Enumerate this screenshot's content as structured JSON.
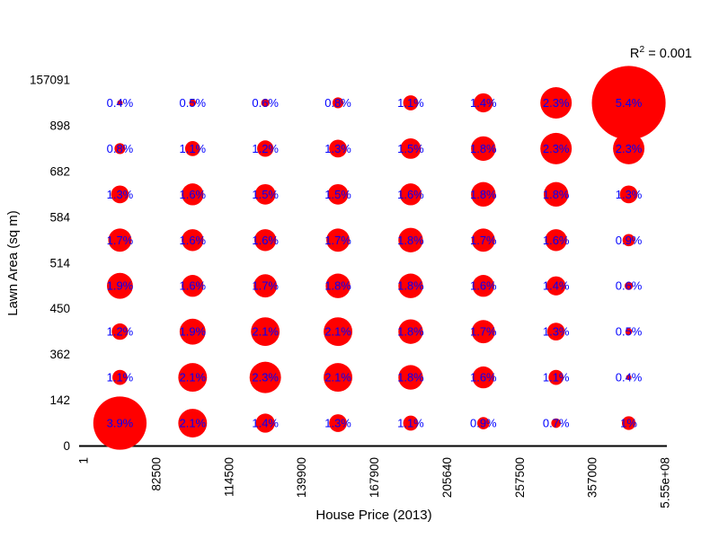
{
  "figure": {
    "background": "#ffffff"
  },
  "chart_data": {
    "type": "bubble",
    "title": "",
    "xlabel": "House Price (2013)",
    "ylabel": "Lawn Area (sq m)",
    "x_tick_labels": [
      "1",
      "82500",
      "114500",
      "139900",
      "167900",
      "205640",
      "257500",
      "357000",
      "5.55e+08"
    ],
    "y_tick_labels_bottom_to_top": [
      "0",
      "142",
      "362",
      "450",
      "514",
      "584",
      "682",
      "898",
      "157091"
    ],
    "annotation": {
      "text_plain": "R^2 = 0.001",
      "base": "R",
      "exponent": "2",
      "rest": "= 0.001"
    },
    "grid": false,
    "legend": "none",
    "bubble_color": "#ff0000",
    "label_color": "#0000ff",
    "axis_color": "#000000",
    "cells": {
      "order": "rows_top_to_bottom",
      "labels": [
        [
          "0.4%",
          "0.5%",
          "0.6%",
          "0.8%",
          "1.1%",
          "1.4%",
          "2.3%",
          "5.4%"
        ],
        [
          "0.8%",
          "1.1%",
          "1.2%",
          "1.3%",
          "1.5%",
          "1.8%",
          "2.3%",
          "2.3%"
        ],
        [
          "1.3%",
          "1.6%",
          "1.5%",
          "1.5%",
          "1.6%",
          "1.8%",
          "1.8%",
          "1.3%"
        ],
        [
          "1.7%",
          "1.6%",
          "1.6%",
          "1.7%",
          "1.8%",
          "1.7%",
          "1.6%",
          "0.9%"
        ],
        [
          "1.9%",
          "1.6%",
          "1.7%",
          "1.8%",
          "1.8%",
          "1.6%",
          "1.4%",
          "0.6%"
        ],
        [
          "1.2%",
          "1.9%",
          "2.1%",
          "2.1%",
          "1.8%",
          "1.7%",
          "1.3%",
          "0.5%"
        ],
        [
          "1.1%",
          "2.1%",
          "2.3%",
          "2.1%",
          "1.8%",
          "1.6%",
          "1.1%",
          "0.4%"
        ],
        [
          "3.9%",
          "2.1%",
          "1.4%",
          "1.3%",
          "1.1%",
          "0.9%",
          "0.7%",
          "1%"
        ]
      ],
      "values_percent": [
        [
          0.4,
          0.5,
          0.6,
          0.8,
          1.1,
          1.4,
          2.3,
          5.4
        ],
        [
          0.8,
          1.1,
          1.2,
          1.3,
          1.5,
          1.8,
          2.3,
          2.3
        ],
        [
          1.3,
          1.6,
          1.5,
          1.5,
          1.6,
          1.8,
          1.8,
          1.3
        ],
        [
          1.7,
          1.6,
          1.6,
          1.7,
          1.8,
          1.7,
          1.6,
          0.9
        ],
        [
          1.9,
          1.6,
          1.7,
          1.8,
          1.8,
          1.6,
          1.4,
          0.6
        ],
        [
          1.2,
          1.9,
          2.1,
          2.1,
          1.8,
          1.7,
          1.3,
          0.5
        ],
        [
          1.1,
          2.1,
          2.3,
          2.1,
          1.8,
          1.6,
          1.1,
          0.4
        ],
        [
          3.9,
          2.1,
          1.4,
          1.3,
          1.1,
          0.9,
          0.7,
          1.0
        ]
      ]
    }
  }
}
